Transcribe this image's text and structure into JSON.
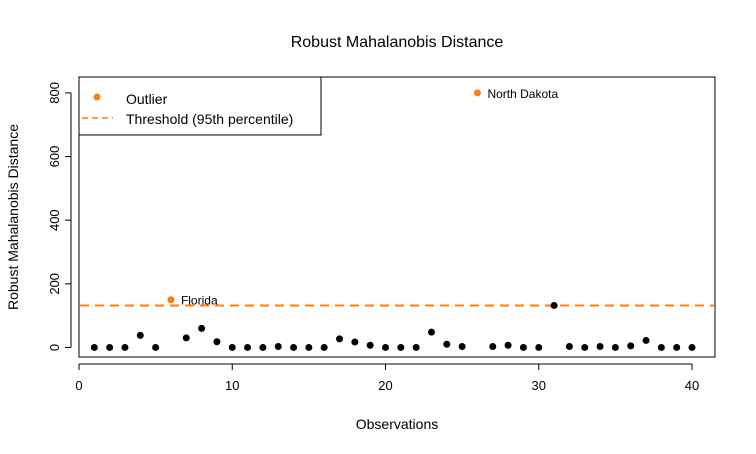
{
  "chart_data": {
    "type": "scatter",
    "title": "Robust Mahalanobis Distance",
    "xlabel": "Observations",
    "ylabel": "Robust Mahalanobis Distance",
    "xlim": [
      0,
      41.5
    ],
    "ylim": [
      -30,
      850
    ],
    "xticks": [
      0,
      10,
      20,
      30,
      40
    ],
    "yticks": [
      0,
      200,
      400,
      600,
      800
    ],
    "threshold": 132,
    "colors": {
      "normal": "#000000",
      "outlier": "#ff7f0e",
      "threshold": "#ff7f0e"
    },
    "legend": {
      "placement": "top-left",
      "items": [
        {
          "label": "Outlier",
          "symbol": "point"
        },
        {
          "label": "Threshold (95th percentile)",
          "symbol": "dashed-line"
        }
      ]
    },
    "points": [
      {
        "x": 1,
        "y": 0
      },
      {
        "x": 2,
        "y": 0
      },
      {
        "x": 3,
        "y": 0
      },
      {
        "x": 4,
        "y": 38
      },
      {
        "x": 5,
        "y": 0
      },
      {
        "x": 6,
        "y": 150,
        "outlier": true,
        "label": "Florida"
      },
      {
        "x": 7,
        "y": 30
      },
      {
        "x": 8,
        "y": 60
      },
      {
        "x": 9,
        "y": 18
      },
      {
        "x": 10,
        "y": 0
      },
      {
        "x": 11,
        "y": 0
      },
      {
        "x": 12,
        "y": 0
      },
      {
        "x": 13,
        "y": 3
      },
      {
        "x": 14,
        "y": 0
      },
      {
        "x": 15,
        "y": 0
      },
      {
        "x": 16,
        "y": 0
      },
      {
        "x": 17,
        "y": 27
      },
      {
        "x": 18,
        "y": 17
      },
      {
        "x": 19,
        "y": 7
      },
      {
        "x": 20,
        "y": 0
      },
      {
        "x": 21,
        "y": 0
      },
      {
        "x": 22,
        "y": 0
      },
      {
        "x": 23,
        "y": 48
      },
      {
        "x": 24,
        "y": 10
      },
      {
        "x": 25,
        "y": 3
      },
      {
        "x": 26,
        "y": 800,
        "outlier": true,
        "label": "North Dakota"
      },
      {
        "x": 27,
        "y": 3
      },
      {
        "x": 28,
        "y": 7
      },
      {
        "x": 29,
        "y": 0
      },
      {
        "x": 30,
        "y": 0
      },
      {
        "x": 31,
        "y": 132
      },
      {
        "x": 32,
        "y": 3
      },
      {
        "x": 33,
        "y": 0
      },
      {
        "x": 34,
        "y": 3
      },
      {
        "x": 35,
        "y": 0
      },
      {
        "x": 36,
        "y": 5
      },
      {
        "x": 37,
        "y": 22
      },
      {
        "x": 38,
        "y": 0
      },
      {
        "x": 39,
        "y": 0
      },
      {
        "x": 40,
        "y": 0
      }
    ]
  }
}
